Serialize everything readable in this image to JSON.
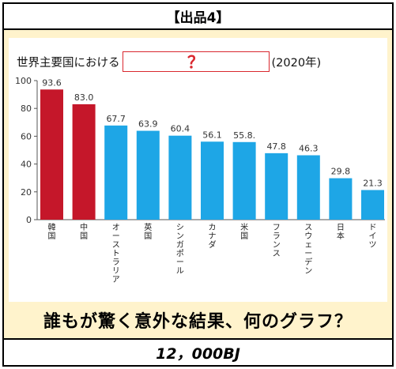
{
  "header": {
    "label": "【出品4】"
  },
  "title": {
    "prefix": "世界主要国における",
    "blank": "？",
    "suffix": "(2020年)"
  },
  "question": "誰もが驚く意外な結果、何のグラフ？",
  "price": "12，000BJ",
  "colors": {
    "highlight": "#c5172a",
    "normal": "#1ea6e6",
    "blank_border": "#d9282f"
  },
  "chart_data": {
    "type": "bar",
    "categories": [
      "韓国",
      "中国",
      "オーストラリア",
      "英国",
      "シンガポール",
      "カナダ",
      "米国",
      "フランス",
      "スウェーデン",
      "日本",
      "ドイツ"
    ],
    "values": [
      93.6,
      83.0,
      67.7,
      63.9,
      60.4,
      56.1,
      55.8,
      47.8,
      46.3,
      29.8,
      21.3
    ],
    "value_labels": [
      "93.6",
      "83.0",
      "67.7",
      "63.9",
      "60.4",
      "56.1",
      "55.8.",
      "47.8",
      "46.3",
      "29.8",
      "21.3"
    ],
    "highlighted": [
      0,
      1
    ],
    "ylim": [
      0,
      100
    ],
    "yticks": [
      0,
      20,
      40,
      60,
      80,
      100
    ],
    "xlabel": "",
    "ylabel": ""
  }
}
